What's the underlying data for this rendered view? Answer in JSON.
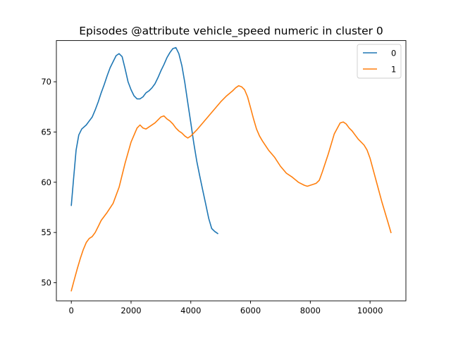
{
  "chart_data": {
    "type": "line",
    "title": "Episodes @attribute vehicle_speed numeric in cluster 0",
    "xlabel": "",
    "ylabel": "",
    "xlim": [
      -500,
      11200
    ],
    "ylim": [
      48.2,
      74.1
    ],
    "xticks": [
      0,
      2000,
      4000,
      6000,
      8000,
      10000
    ],
    "xtick_labels": [
      "0",
      "2000",
      "4000",
      "6000",
      "8000",
      "10000"
    ],
    "yticks": [
      50,
      55,
      60,
      65,
      70
    ],
    "ytick_labels": [
      "50",
      "55",
      "60",
      "65",
      "70"
    ],
    "grid": false,
    "legend_position": "top-right",
    "series": [
      {
        "name": "0",
        "color": "#1f77b4",
        "x": [
          0,
          80,
          160,
          250,
          350,
          500,
          600,
          700,
          800,
          900,
          1000,
          1100,
          1200,
          1300,
          1400,
          1500,
          1600,
          1700,
          1800,
          1900,
          2000,
          2100,
          2200,
          2300,
          2400,
          2500,
          2600,
          2700,
          2800,
          2900,
          3000,
          3100,
          3200,
          3300,
          3400,
          3500,
          3600,
          3700,
          3800,
          3900,
          4000,
          4100,
          4200,
          4300,
          4400,
          4500,
          4600,
          4700,
          4800,
          4900
        ],
        "y": [
          57.7,
          60.5,
          63.2,
          64.7,
          65.3,
          65.7,
          66.1,
          66.5,
          67.2,
          68.0,
          68.9,
          69.7,
          70.6,
          71.4,
          72.0,
          72.6,
          72.8,
          72.5,
          71.3,
          70.0,
          69.2,
          68.6,
          68.3,
          68.3,
          68.5,
          68.9,
          69.1,
          69.4,
          69.8,
          70.4,
          71.1,
          71.7,
          72.4,
          72.9,
          73.3,
          73.4,
          72.8,
          71.6,
          69.9,
          67.9,
          65.9,
          63.9,
          62.1,
          60.6,
          59.2,
          57.8,
          56.4,
          55.4,
          55.1,
          54.9
        ]
      },
      {
        "name": "1",
        "color": "#ff7f0e",
        "x": [
          0,
          100,
          200,
          300,
          400,
          500,
          600,
          700,
          800,
          900,
          1000,
          1200,
          1400,
          1600,
          1800,
          2000,
          2200,
          2300,
          2400,
          2500,
          2600,
          2800,
          3000,
          3100,
          3200,
          3300,
          3400,
          3500,
          3600,
          3700,
          3800,
          3900,
          4000,
          4200,
          4400,
          4600,
          4800,
          5000,
          5200,
          5400,
          5500,
          5600,
          5700,
          5800,
          5900,
          6000,
          6100,
          6200,
          6300,
          6400,
          6600,
          6800,
          7000,
          7200,
          7400,
          7600,
          7800,
          7900,
          8000,
          8100,
          8200,
          8300,
          8400,
          8600,
          8800,
          9000,
          9100,
          9200,
          9300,
          9400,
          9500,
          9600,
          9700,
          9800,
          9900,
          10000,
          10200,
          10400,
          10600,
          10700
        ],
        "y": [
          49.2,
          50.3,
          51.4,
          52.4,
          53.3,
          54.0,
          54.4,
          54.6,
          55.0,
          55.6,
          56.2,
          57.0,
          57.9,
          59.5,
          61.9,
          64.0,
          65.4,
          65.7,
          65.4,
          65.3,
          65.5,
          65.9,
          66.5,
          66.6,
          66.3,
          66.1,
          65.8,
          65.4,
          65.1,
          64.9,
          64.6,
          64.4,
          64.6,
          65.2,
          65.9,
          66.6,
          67.3,
          68.0,
          68.6,
          69.1,
          69.4,
          69.6,
          69.5,
          69.2,
          68.5,
          67.4,
          66.3,
          65.3,
          64.6,
          64.1,
          63.2,
          62.5,
          61.6,
          60.9,
          60.5,
          60.0,
          59.7,
          59.6,
          59.7,
          59.8,
          59.9,
          60.2,
          61.0,
          62.8,
          64.8,
          65.9,
          66.0,
          65.8,
          65.4,
          65.1,
          64.7,
          64.3,
          64.0,
          63.7,
          63.2,
          62.4,
          60.2,
          58.0,
          56.0,
          55.0
        ]
      }
    ]
  }
}
